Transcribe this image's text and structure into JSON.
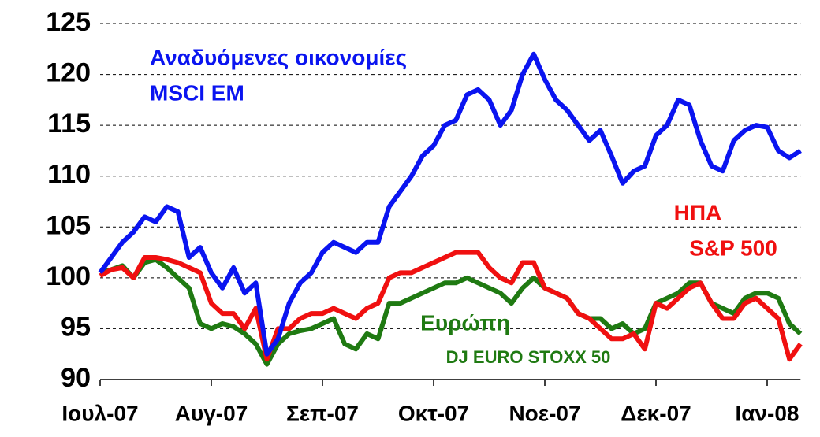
{
  "chart_data": {
    "type": "line",
    "categories": [
      "Ιουλ-07",
      null,
      null,
      null,
      null,
      null,
      null,
      null,
      null,
      null,
      "Αυγ-07",
      null,
      null,
      null,
      null,
      null,
      null,
      null,
      null,
      null,
      "Σεπ-07",
      null,
      null,
      null,
      null,
      null,
      null,
      null,
      null,
      null,
      "Οκτ-07",
      null,
      null,
      null,
      null,
      null,
      null,
      null,
      null,
      null,
      "Νοε-07",
      null,
      null,
      null,
      null,
      null,
      null,
      null,
      null,
      null,
      "Δεκ-07",
      null,
      null,
      null,
      null,
      null,
      null,
      null,
      null,
      null,
      "Ιαν-08",
      null,
      null,
      null
    ],
    "series": [
      {
        "name": [
          "Αναδυόμενες οικονομίες",
          "MSCI EM"
        ],
        "color": "#0a14f0",
        "values": [
          100.5,
          102,
          103.5,
          104.5,
          106,
          105.5,
          107,
          106.5,
          102,
          103,
          100.5,
          99,
          101,
          98.5,
          99.5,
          92.5,
          94,
          97.5,
          99.5,
          100.5,
          102.5,
          103.5,
          103,
          102.5,
          103.5,
          103.5,
          107,
          108.5,
          110,
          112,
          113,
          115,
          115.5,
          118,
          118.5,
          117.5,
          115,
          116.5,
          120,
          122,
          119.5,
          117.5,
          116.5,
          115,
          113.5,
          114.5,
          112,
          109.3,
          110.5,
          111,
          114,
          115,
          117.5,
          117,
          113.5,
          111,
          110.5,
          113.5,
          114.5,
          115,
          114.8,
          112.5,
          111.8,
          112.5
        ]
      },
      {
        "name": [
          "ΗΠΑ",
          "S&P 500"
        ],
        "color": "#f01010",
        "values": [
          100.2,
          100.8,
          101,
          100,
          102,
          102,
          101.8,
          101.5,
          101,
          100.5,
          97.5,
          96.5,
          96.5,
          95,
          97,
          92,
          95,
          95,
          96,
          96.5,
          96.5,
          97,
          96.5,
          96,
          97,
          97.5,
          100,
          100.5,
          100.5,
          101,
          101.5,
          102,
          102.5,
          102.5,
          102.5,
          101,
          100,
          99.5,
          101.5,
          101.5,
          99,
          98.5,
          98,
          96.5,
          96,
          95,
          94,
          94,
          94.5,
          93,
          97.5,
          97,
          98,
          99,
          99.5,
          97.5,
          96,
          96,
          97.5,
          98,
          97,
          96,
          92,
          93.5
        ]
      },
      {
        "name": [
          "Ευρώπη",
          "DJ EURO STOXX 50"
        ],
        "color": "#1f7a12",
        "values": [
          100.5,
          100.8,
          101.2,
          100,
          101.5,
          101.8,
          101,
          100,
          99,
          95.5,
          95,
          95.5,
          95.2,
          94.5,
          93.5,
          91.5,
          93.5,
          94.5,
          94.8,
          95,
          95.5,
          96,
          93.5,
          93,
          94.5,
          94,
          97.5,
          97.5,
          98,
          98.5,
          99,
          99.5,
          99.5,
          100,
          99.5,
          99,
          98.5,
          97.5,
          99,
          100,
          99,
          98.5,
          98,
          96.5,
          96,
          96,
          95,
          95.5,
          94.5,
          95,
          97.5,
          98,
          98.5,
          99.5,
          99.5,
          97.5,
          97,
          96.5,
          98,
          98.5,
          98.5,
          98,
          95.5,
          94.5
        ]
      }
    ],
    "ylim": [
      90,
      125
    ],
    "yticks": [
      90,
      95,
      100,
      105,
      110,
      115,
      120,
      125
    ],
    "grid": true
  }
}
